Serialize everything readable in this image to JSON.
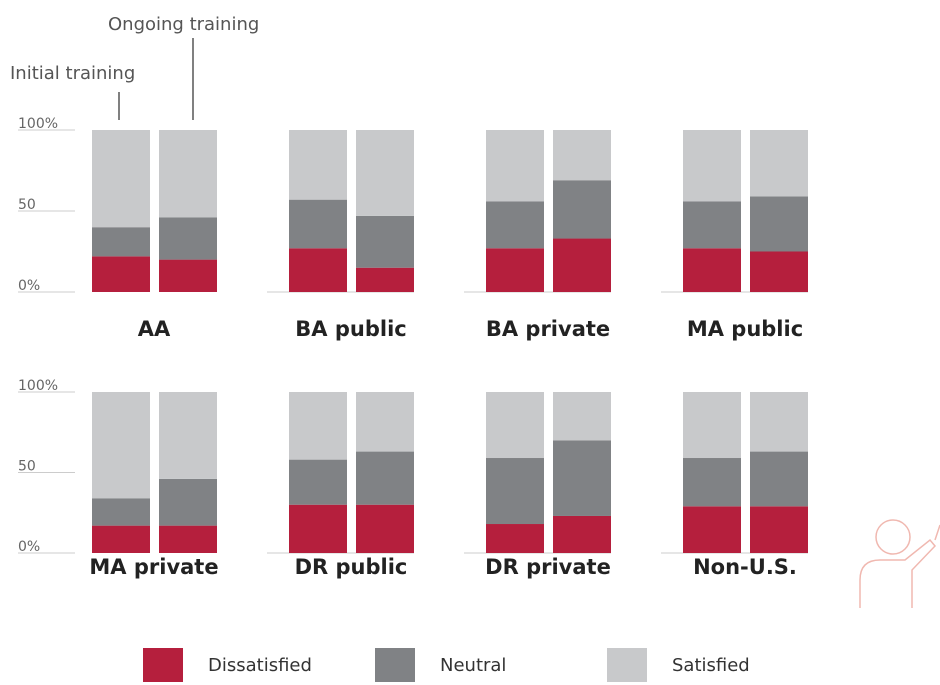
{
  "chart_data": {
    "type": "stacked_bar",
    "categories": [
      "Initial training",
      "Ongoing training"
    ],
    "series": [
      {
        "name": "Dissatisfied",
        "color": "#b51f3d"
      },
      {
        "name": "Neutral",
        "color": "#808285"
      },
      {
        "name": "Satisfied",
        "color": "#c8c9cb"
      }
    ],
    "ylim": [
      0,
      100
    ],
    "yticks": [
      {
        "value": 0,
        "label": "0%"
      },
      50,
      {
        "value": 100,
        "label": "100%"
      }
    ],
    "panels": [
      {
        "title": "AA",
        "values": [
          [
            22,
            20
          ],
          [
            18,
            26
          ],
          [
            60,
            54
          ]
        ]
      },
      {
        "title": "BA public",
        "values": [
          [
            27,
            15
          ],
          [
            30,
            32
          ],
          [
            43,
            53
          ]
        ]
      },
      {
        "title": "BA private",
        "values": [
          [
            27,
            33
          ],
          [
            29,
            36
          ],
          [
            44,
            31
          ]
        ]
      },
      {
        "title": "MA public",
        "values": [
          [
            27,
            25
          ],
          [
            29,
            34
          ],
          [
            44,
            41
          ]
        ]
      },
      {
        "title": "MA private",
        "values": [
          [
            17,
            17
          ],
          [
            17,
            29
          ],
          [
            66,
            54
          ]
        ]
      },
      {
        "title": "DR public",
        "values": [
          [
            30,
            30
          ],
          [
            28,
            33
          ],
          [
            42,
            37
          ]
        ]
      },
      {
        "title": "DR private",
        "values": [
          [
            18,
            23
          ],
          [
            41,
            47
          ],
          [
            41,
            30
          ]
        ]
      },
      {
        "title": "Non-U.S.",
        "values": [
          [
            29,
            29
          ],
          [
            30,
            34
          ],
          [
            41,
            37
          ]
        ]
      }
    ]
  }
}
